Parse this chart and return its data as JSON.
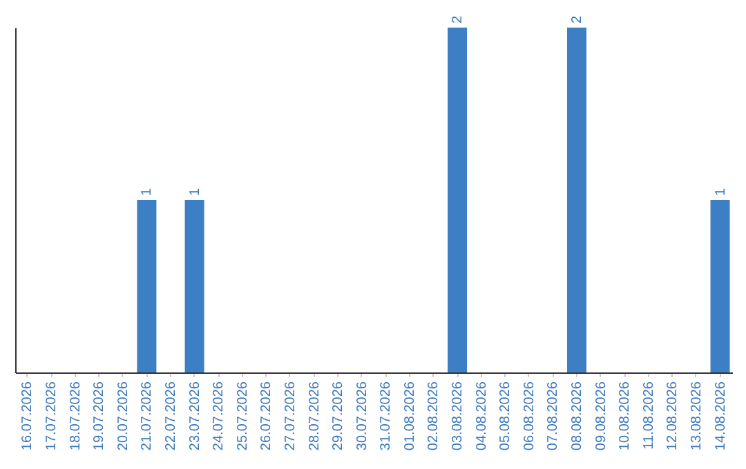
{
  "chart_data": {
    "type": "bar",
    "categories": [
      "16.07.2026",
      "17.07.2026",
      "18.07.2026",
      "19.07.2026",
      "20.07.2026",
      "21.07.2026",
      "22.07.2026",
      "23.07.2026",
      "24.07.2026",
      "25.07.2026",
      "26.07.2026",
      "27.07.2026",
      "28.07.2026",
      "29.07.2026",
      "30.07.2026",
      "31.07.2026",
      "01.08.2026",
      "02.08.2026",
      "03.08.2026",
      "04.08.2026",
      "05.08.2026",
      "06.08.2026",
      "07.08.2026",
      "08.08.2026",
      "09.08.2026",
      "10.08.2026",
      "11.08.2026",
      "12.08.2026",
      "13.08.2026",
      "14.08.2026"
    ],
    "values": [
      0,
      0,
      0,
      0,
      0,
      1,
      0,
      1,
      0,
      0,
      0,
      0,
      0,
      0,
      0,
      0,
      0,
      0,
      2,
      0,
      0,
      0,
      0,
      2,
      0,
      0,
      0,
      0,
      0,
      1
    ],
    "value_labels": [
      null,
      null,
      null,
      null,
      null,
      "1",
      null,
      "1",
      null,
      null,
      null,
      null,
      null,
      null,
      null,
      null,
      null,
      null,
      "2",
      null,
      null,
      null,
      null,
      "2",
      null,
      null,
      null,
      null,
      null,
      "1"
    ],
    "color": "#3d7fc4",
    "tick_labels": "x"
  }
}
